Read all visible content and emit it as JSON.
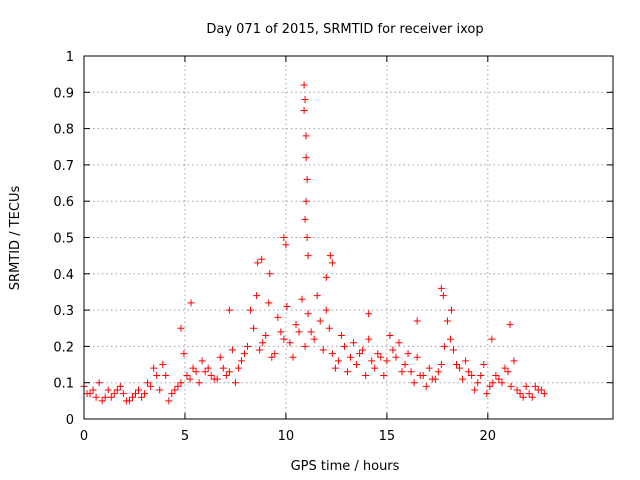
{
  "chart_data": {
    "type": "scatter",
    "title": "Day 071 of 2015, SRMTID for receiver ixop",
    "xlabel": "GPS time / hours",
    "ylabel": "SRMTID / TECUs",
    "xlim": [
      0,
      26.2
    ],
    "ylim": [
      0,
      1
    ],
    "xticks": [
      0,
      5,
      10,
      15,
      20
    ],
    "xtick_labels": [
      "0",
      "5",
      "10",
      "15",
      "20"
    ],
    "yticks": [
      0,
      0.1,
      0.2,
      0.3,
      0.4,
      0.5,
      0.6,
      0.7,
      0.8,
      0.9,
      1
    ],
    "ytick_labels": [
      "0",
      "0.1",
      "0.2",
      "0.3",
      "0.4",
      "0.5",
      "0.6",
      "0.7",
      "0.8",
      "0.9",
      "1"
    ],
    "grid": true,
    "marker": "+",
    "series": [
      {
        "name": "SRMTID",
        "color": "#ff0000",
        "x": [
          0.0,
          0.3,
          0.6,
          0.9,
          1.2,
          1.5,
          1.8,
          2.1,
          2.4,
          2.7,
          3.0,
          3.3,
          3.6,
          3.9,
          4.2,
          4.5,
          4.8,
          5.1,
          5.4,
          5.7,
          6.0,
          6.3,
          6.6,
          6.9,
          7.2,
          7.5,
          7.8,
          8.1,
          8.4,
          8.7,
          9.0,
          9.3,
          9.6,
          9.9,
          10.2,
          10.5,
          10.8,
          11.1,
          11.4,
          11.7,
          12.0,
          12.3,
          12.6,
          12.9,
          13.2,
          13.5,
          13.8,
          14.1,
          14.4,
          14.7,
          15.0,
          15.3,
          15.6,
          15.9,
          16.2,
          16.5,
          16.8,
          17.1,
          17.4,
          17.7,
          18.0,
          18.3,
          18.6,
          18.9,
          19.2,
          19.5,
          19.8,
          20.1,
          20.4,
          20.7,
          21.0,
          21.3,
          21.6,
          21.9,
          22.2,
          22.5,
          22.8,
          0.15,
          0.45,
          0.75,
          1.05,
          1.35,
          1.65,
          1.95,
          2.25,
          2.55,
          2.85,
          3.15,
          3.45,
          3.75,
          4.05,
          4.35,
          4.65,
          4.95,
          5.25,
          5.55,
          5.85,
          6.15,
          6.45,
          6.75,
          7.05,
          7.35,
          7.65,
          7.95,
          8.25,
          8.55,
          8.85,
          9.15,
          9.45,
          9.75,
          10.05,
          10.35,
          10.65,
          10.95,
          11.25,
          11.55,
          11.85,
          12.15,
          12.45,
          12.75,
          13.05,
          13.35,
          13.65,
          13.95,
          14.25,
          14.55,
          14.85,
          15.15,
          15.45,
          15.75,
          16.05,
          16.35,
          16.65,
          16.95,
          17.25,
          17.55,
          17.85,
          18.15,
          18.45,
          18.75,
          19.05,
          19.35,
          19.65,
          19.95,
          20.25,
          20.55,
          20.85,
          21.15,
          21.45,
          21.75,
          22.05,
          22.35,
          22.65,
          10.9,
          10.95,
          11.0,
          11.0,
          11.05,
          11.0,
          10.95,
          11.05,
          10.9,
          11.1,
          9.9,
          10.0,
          8.6,
          8.8,
          9.2,
          12.2,
          12.3,
          12.0,
          7.2,
          5.3,
          4.8,
          17.7,
          17.8,
          18.2,
          14.1,
          16.5,
          20.2,
          21.1
        ],
        "y": [
          0.09,
          0.07,
          0.06,
          0.05,
          0.08,
          0.07,
          0.09,
          0.05,
          0.06,
          0.08,
          0.07,
          0.09,
          0.12,
          0.15,
          0.05,
          0.08,
          0.1,
          0.12,
          0.14,
          0.1,
          0.13,
          0.12,
          0.11,
          0.14,
          0.13,
          0.1,
          0.16,
          0.2,
          0.25,
          0.19,
          0.23,
          0.17,
          0.28,
          0.22,
          0.21,
          0.26,
          0.33,
          0.29,
          0.22,
          0.27,
          0.3,
          0.18,
          0.16,
          0.2,
          0.17,
          0.15,
          0.19,
          0.22,
          0.14,
          0.17,
          0.16,
          0.19,
          0.21,
          0.15,
          0.13,
          0.17,
          0.12,
          0.14,
          0.11,
          0.15,
          0.27,
          0.19,
          0.14,
          0.16,
          0.12,
          0.1,
          0.15,
          0.09,
          0.12,
          0.1,
          0.13,
          0.16,
          0.07,
          0.09,
          0.06,
          0.08,
          0.07,
          0.07,
          0.08,
          0.1,
          0.06,
          0.06,
          0.08,
          0.07,
          0.05,
          0.07,
          0.06,
          0.1,
          0.14,
          0.08,
          0.12,
          0.07,
          0.09,
          0.18,
          0.11,
          0.13,
          0.16,
          0.14,
          0.11,
          0.17,
          0.12,
          0.19,
          0.14,
          0.18,
          0.3,
          0.34,
          0.21,
          0.32,
          0.18,
          0.24,
          0.31,
          0.17,
          0.24,
          0.2,
          0.24,
          0.34,
          0.19,
          0.25,
          0.14,
          0.23,
          0.13,
          0.21,
          0.18,
          0.12,
          0.16,
          0.18,
          0.12,
          0.23,
          0.17,
          0.13,
          0.18,
          0.1,
          0.12,
          0.09,
          0.11,
          0.13,
          0.2,
          0.22,
          0.15,
          0.11,
          0.13,
          0.08,
          0.12,
          0.07,
          0.1,
          0.11,
          0.14,
          0.09,
          0.08,
          0.06,
          0.07,
          0.09,
          0.08,
          0.92,
          0.88,
          0.78,
          0.72,
          0.66,
          0.6,
          0.55,
          0.5,
          0.85,
          0.45,
          0.5,
          0.48,
          0.43,
          0.44,
          0.4,
          0.45,
          0.43,
          0.39,
          0.3,
          0.32,
          0.25,
          0.36,
          0.34,
          0.3,
          0.29,
          0.27,
          0.22,
          0.26
        ]
      }
    ]
  }
}
